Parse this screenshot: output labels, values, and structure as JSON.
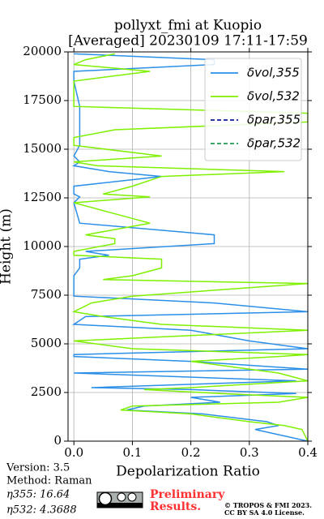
{
  "chart_data": {
    "type": "profile",
    "title": "pollyxt_fmi at Kuopio",
    "subtitle": "[Averaged] 20230109 17:11-17:59",
    "x_label": "Depolarization Ratio",
    "y_label": "Height (m)",
    "xlim": [
      -0.01,
      0.4
    ],
    "xticks": [
      {
        "value": 0,
        "label": "0.0"
      },
      0.1,
      0.2,
      0.3,
      0.4
    ],
    "ylim": [
      0,
      20000
    ],
    "yticks": [
      0,
      2500,
      5000,
      7500,
      10000,
      12500,
      15000,
      17500,
      20000
    ],
    "grid": true,
    "legend": "upper right",
    "y": [
      0,
      600,
      800,
      1000,
      1400,
      1600,
      1800,
      2000,
      2250,
      2450,
      2650,
      2750,
      3100,
      3500,
      3700,
      4100,
      4350,
      4450,
      4750,
      5150,
      5700,
      6000,
      6400,
      6650,
      7100,
      7450,
      8100,
      8300,
      8500,
      8900,
      9350,
      9550,
      9750,
      10150,
      10400,
      10600,
      11200,
      12250,
      12550,
      12700,
      13100,
      13600,
      13850,
      14150,
      14350,
      14650,
      15200,
      15600,
      16000,
      16400,
      16850,
      17200,
      18500,
      19000,
      19350,
      19600,
      19900
    ],
    "series": [
      {
        "name": "δvol,355",
        "color": "#2b8fe8",
        "dash": false,
        "values": [
          0.4,
          0.31,
          0.35,
          0.33,
          0.22,
          0.09,
          0.12,
          0.25,
          0.2,
          0.38,
          0.2,
          0.03,
          0.38,
          0.0,
          0.4,
          0.2,
          0.0,
          0.0,
          0.4,
          0.3,
          0.2,
          0.0,
          0.02,
          0.4,
          0.24,
          0.0,
          0.0,
          0.0,
          0.0,
          0.01,
          0.01,
          0.06,
          0.02,
          0.24,
          0.24,
          0.24,
          0.01,
          0.0,
          0.01,
          0.0,
          0.0,
          0.15,
          0.06,
          0.0,
          0.01,
          0.0,
          0.01,
          0.01,
          0.01,
          0.01,
          0.01,
          0.01,
          0.0,
          0.0,
          0.24,
          0.24,
          0.0
        ]
      },
      {
        "name": "δvol,532",
        "color": "#7ff000",
        "dash": false,
        "values": [
          0.4,
          0.39,
          0.36,
          0.3,
          0.2,
          0.08,
          0.1,
          0.35,
          0.4,
          0.25,
          0.12,
          0.2,
          0.4,
          0.35,
          0.3,
          0.2,
          0.35,
          0.4,
          0.1,
          0.0,
          0.4,
          0.15,
          0.05,
          0.0,
          0.03,
          0.1,
          0.4,
          0.05,
          0.1,
          0.15,
          0.15,
          0.0,
          0.0,
          0.07,
          0.07,
          0.02,
          0.13,
          0.0,
          0.13,
          0.05,
          0.1,
          0.15,
          0.36,
          0.04,
          0.0,
          0.15,
          0.0,
          0.0,
          0.07,
          0.4,
          0.4,
          0.0,
          0.0,
          0.13,
          0.0,
          0.02,
          0.07
        ]
      },
      {
        "name": "δpar,355",
        "color": "#0a2290",
        "dash": true,
        "values": [
          null,
          null,
          null,
          null,
          null,
          null,
          null,
          null,
          null,
          null,
          null,
          null,
          null,
          null,
          null,
          null,
          null,
          null,
          null,
          null,
          null,
          null,
          null,
          null,
          null,
          null,
          null,
          null,
          null,
          null,
          null,
          null,
          null,
          null,
          null,
          null,
          null,
          null,
          null,
          null,
          null,
          null,
          null,
          null,
          null,
          null,
          null,
          null,
          null,
          null,
          null,
          null,
          null,
          null,
          null,
          null,
          null
        ]
      },
      {
        "name": "δpar,532",
        "color": "#1f9a55",
        "dash": true,
        "values": [
          null,
          null,
          null,
          null,
          null,
          null,
          null,
          null,
          null,
          null,
          null,
          null,
          null,
          null,
          null,
          null,
          null,
          null,
          null,
          null,
          null,
          null,
          null,
          null,
          null,
          null,
          null,
          null,
          null,
          null,
          null,
          null,
          null,
          null,
          null,
          null,
          null,
          null,
          null,
          null,
          null,
          null,
          null,
          null,
          null,
          null,
          null,
          null,
          null,
          null,
          null,
          null,
          null,
          null,
          null,
          null,
          null
        ]
      }
    ],
    "annotations": [
      "Version: 3.5",
      "Method: Raman",
      "η355:  16.64",
      "η532: 4.3688",
      "Preliminary",
      "Results.",
      "© TROPOS & FMI 2023.",
      "CC BY SA 4.0 License."
    ]
  }
}
